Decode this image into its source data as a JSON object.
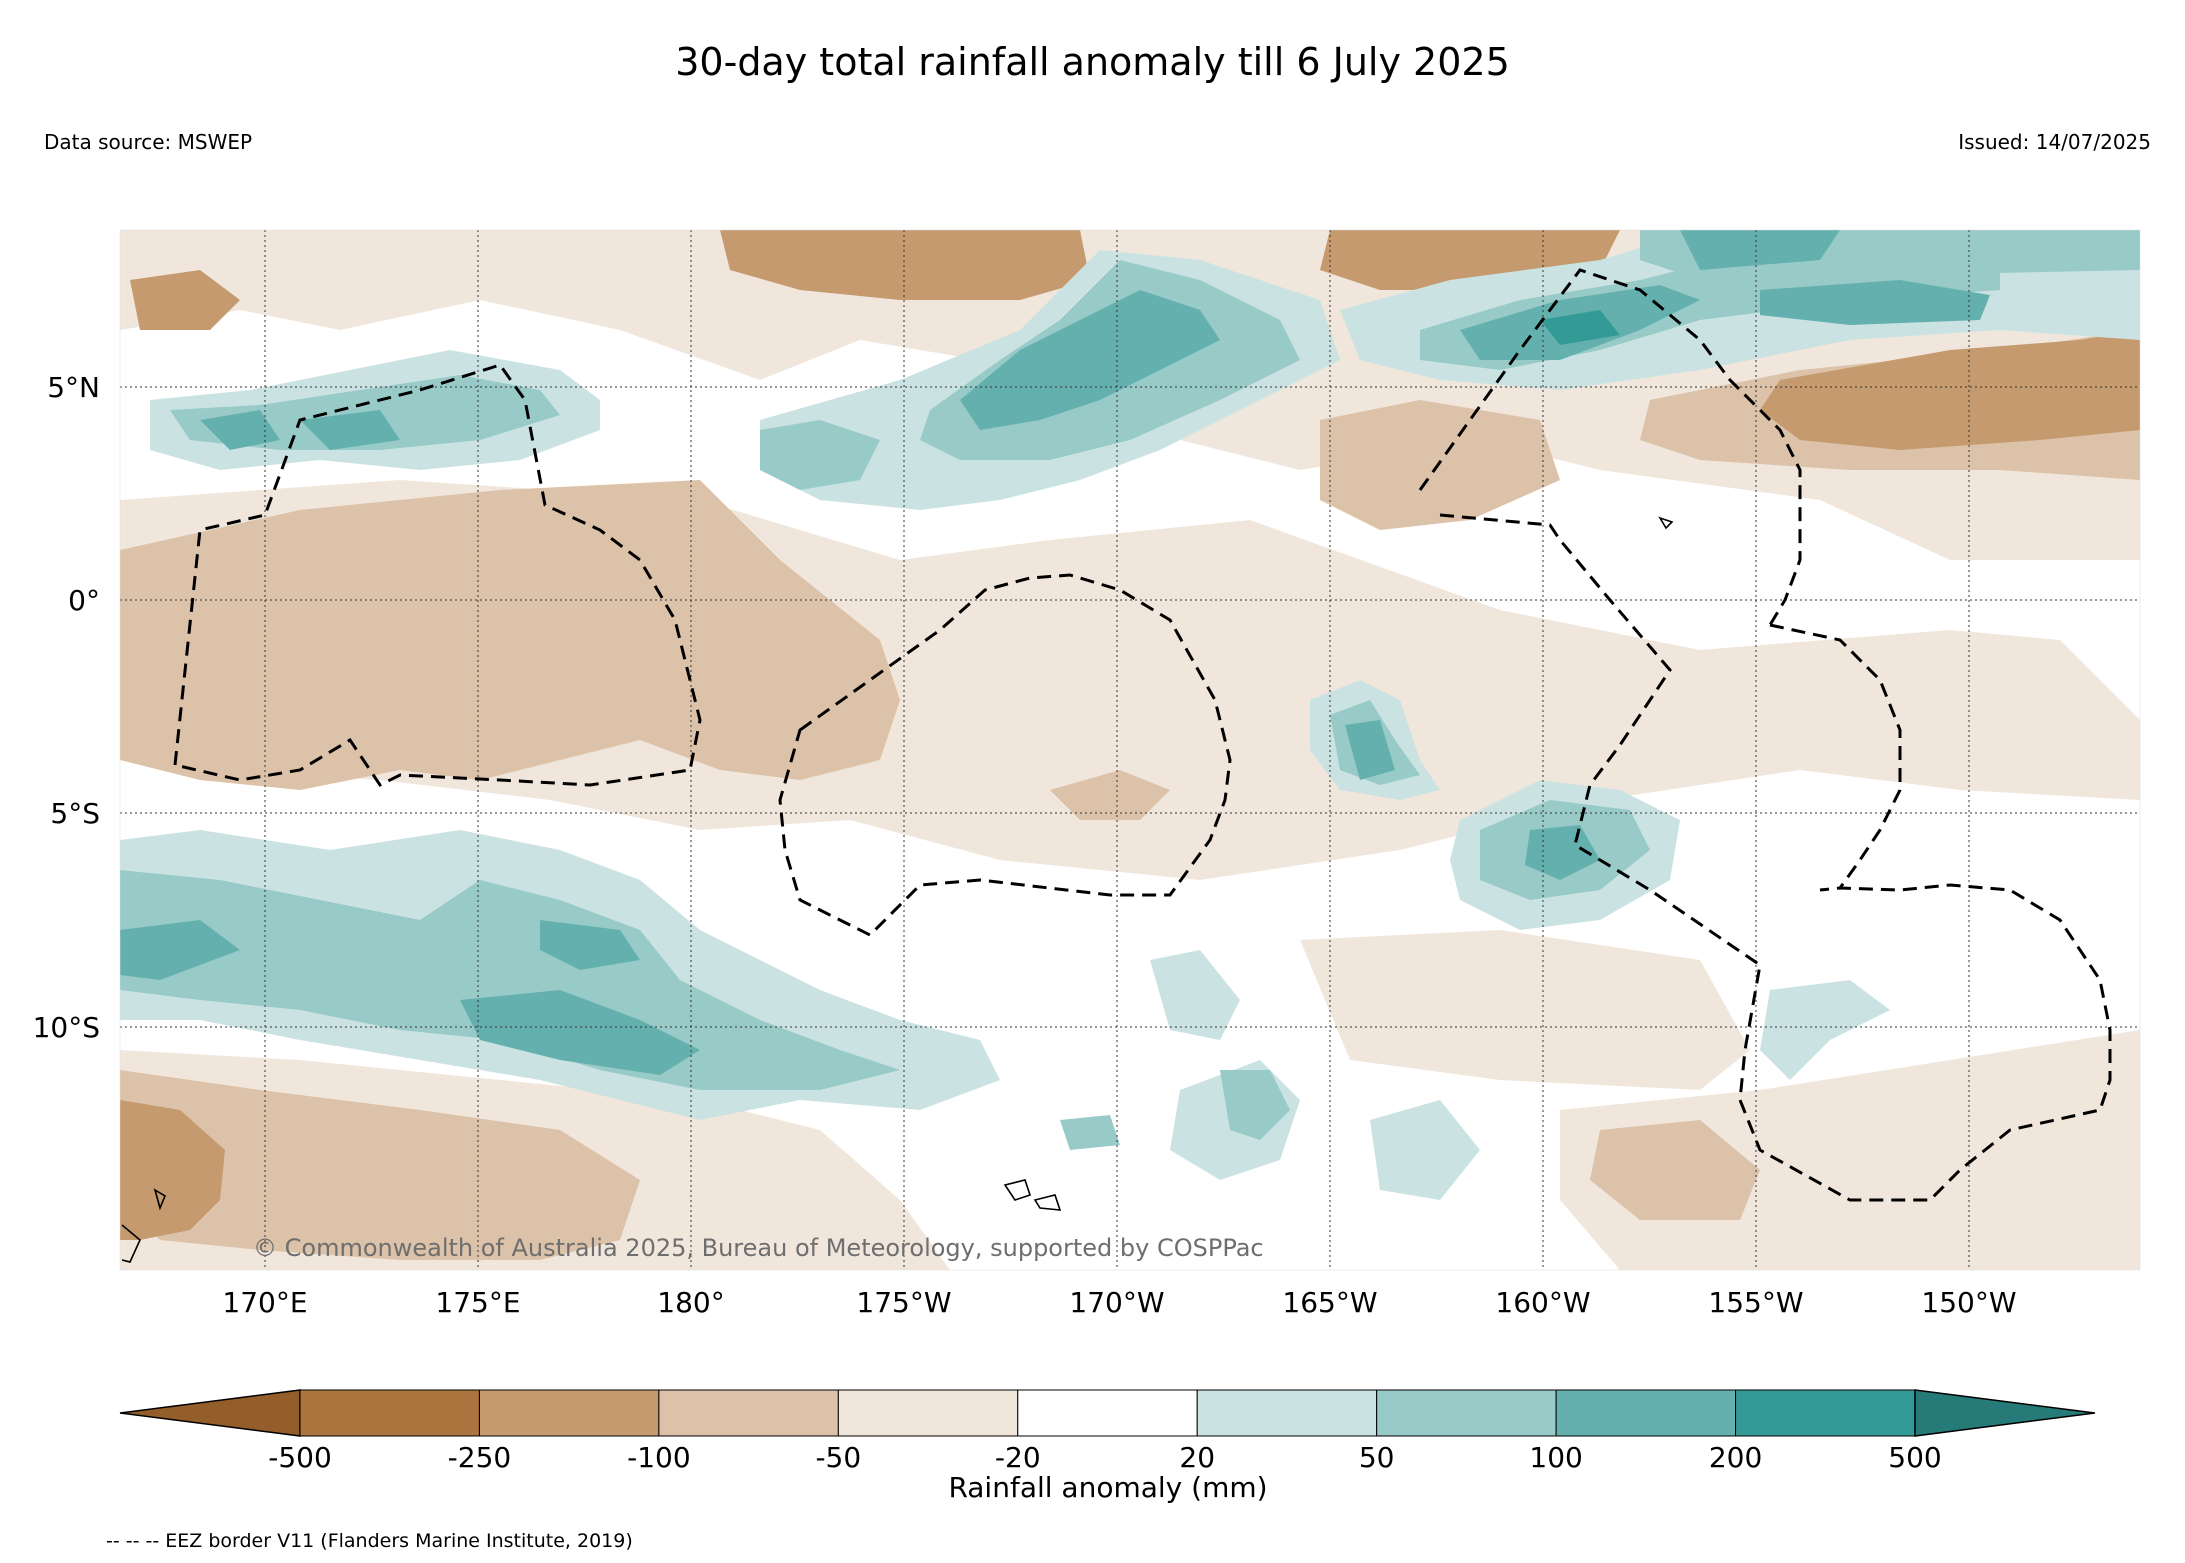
{
  "title": "30-day total rainfall anomaly till 6 July 2025",
  "data_source": "Data source: MSWEP",
  "issued": "Issued: 14/07/2025",
  "copyright": "© Commonwealth of Australia 2025, Bureau of Meteorology, supported by COSPPac",
  "map": {
    "region": "Central tropical Pacific",
    "lon_labels": [
      "170°E",
      "175°E",
      "180°",
      "175°W",
      "170°W",
      "165°W",
      "160°W",
      "155°W",
      "150°W"
    ],
    "lat_labels": [
      "5°N",
      "0°",
      "5°S",
      "10°S"
    ],
    "gridlines": true,
    "gridline_style": "dotted"
  },
  "colorbar": {
    "label": "Rainfall anomaly (mm)",
    "ticks": [
      "-500",
      "-250",
      "-100",
      "-50",
      "-20",
      "20",
      "50",
      "100",
      "200",
      "500"
    ],
    "colors": [
      "#935e2a",
      "#ab7540",
      "#c49a6e",
      "#dbc2a8",
      "#f1e6dc",
      "#ffffff",
      "#cae3e2",
      "#98cac8",
      "#63b0ae",
      "#349a96",
      "#267b78"
    ],
    "extend": "both"
  },
  "legend_note": "-- -- -- EEZ border V11 (Flanders Marine Institute, 2019)",
  "colors": {
    "dry_strong": "#c49a6e",
    "dry_moderate": "#dbc2a8",
    "dry_light": "#f1e6dc",
    "wet_light": "#cae3e2",
    "wet_moderate": "#98cac8",
    "wet_strong": "#63b0ae",
    "wet_extreme": "#349a96"
  }
}
